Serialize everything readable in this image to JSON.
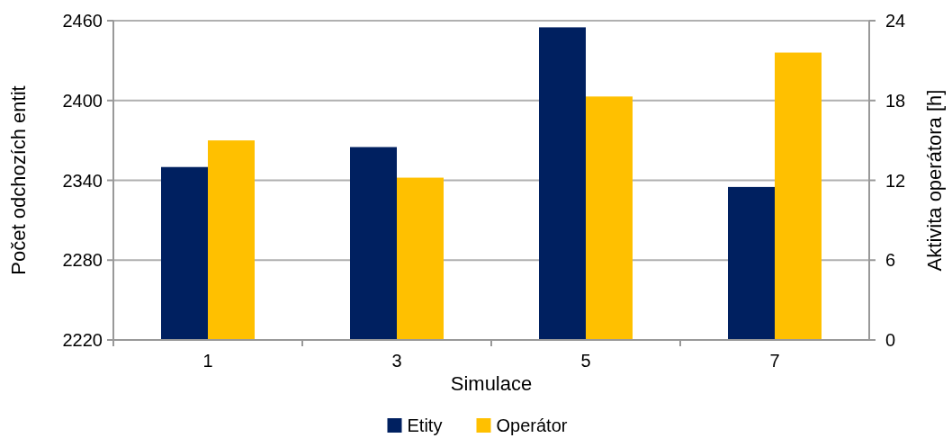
{
  "chart_data": {
    "type": "bar",
    "xlabel": "Simulace",
    "ylabel": "Počet odchozích entit",
    "y2label": "Aktivita operátora [h]",
    "categories": [
      "1",
      "3",
      "5",
      "7"
    ],
    "series": [
      {
        "name": "Etity",
        "color": "#002060",
        "values": [
          2350,
          2365,
          2455,
          2335
        ]
      },
      {
        "name": "Operátor",
        "color": "#ffc000",
        "values": [
          15,
          12.2,
          18.3,
          21.6
        ],
        "axis": "y2"
      }
    ],
    "ylim": [
      2220,
      2460
    ],
    "yticks": [
      2220,
      2280,
      2340,
      2400,
      2460
    ],
    "y2lim": [
      0,
      24
    ],
    "y2ticks": [
      0,
      6,
      12,
      18,
      24
    ],
    "grid": "y",
    "legend": "bottom"
  }
}
